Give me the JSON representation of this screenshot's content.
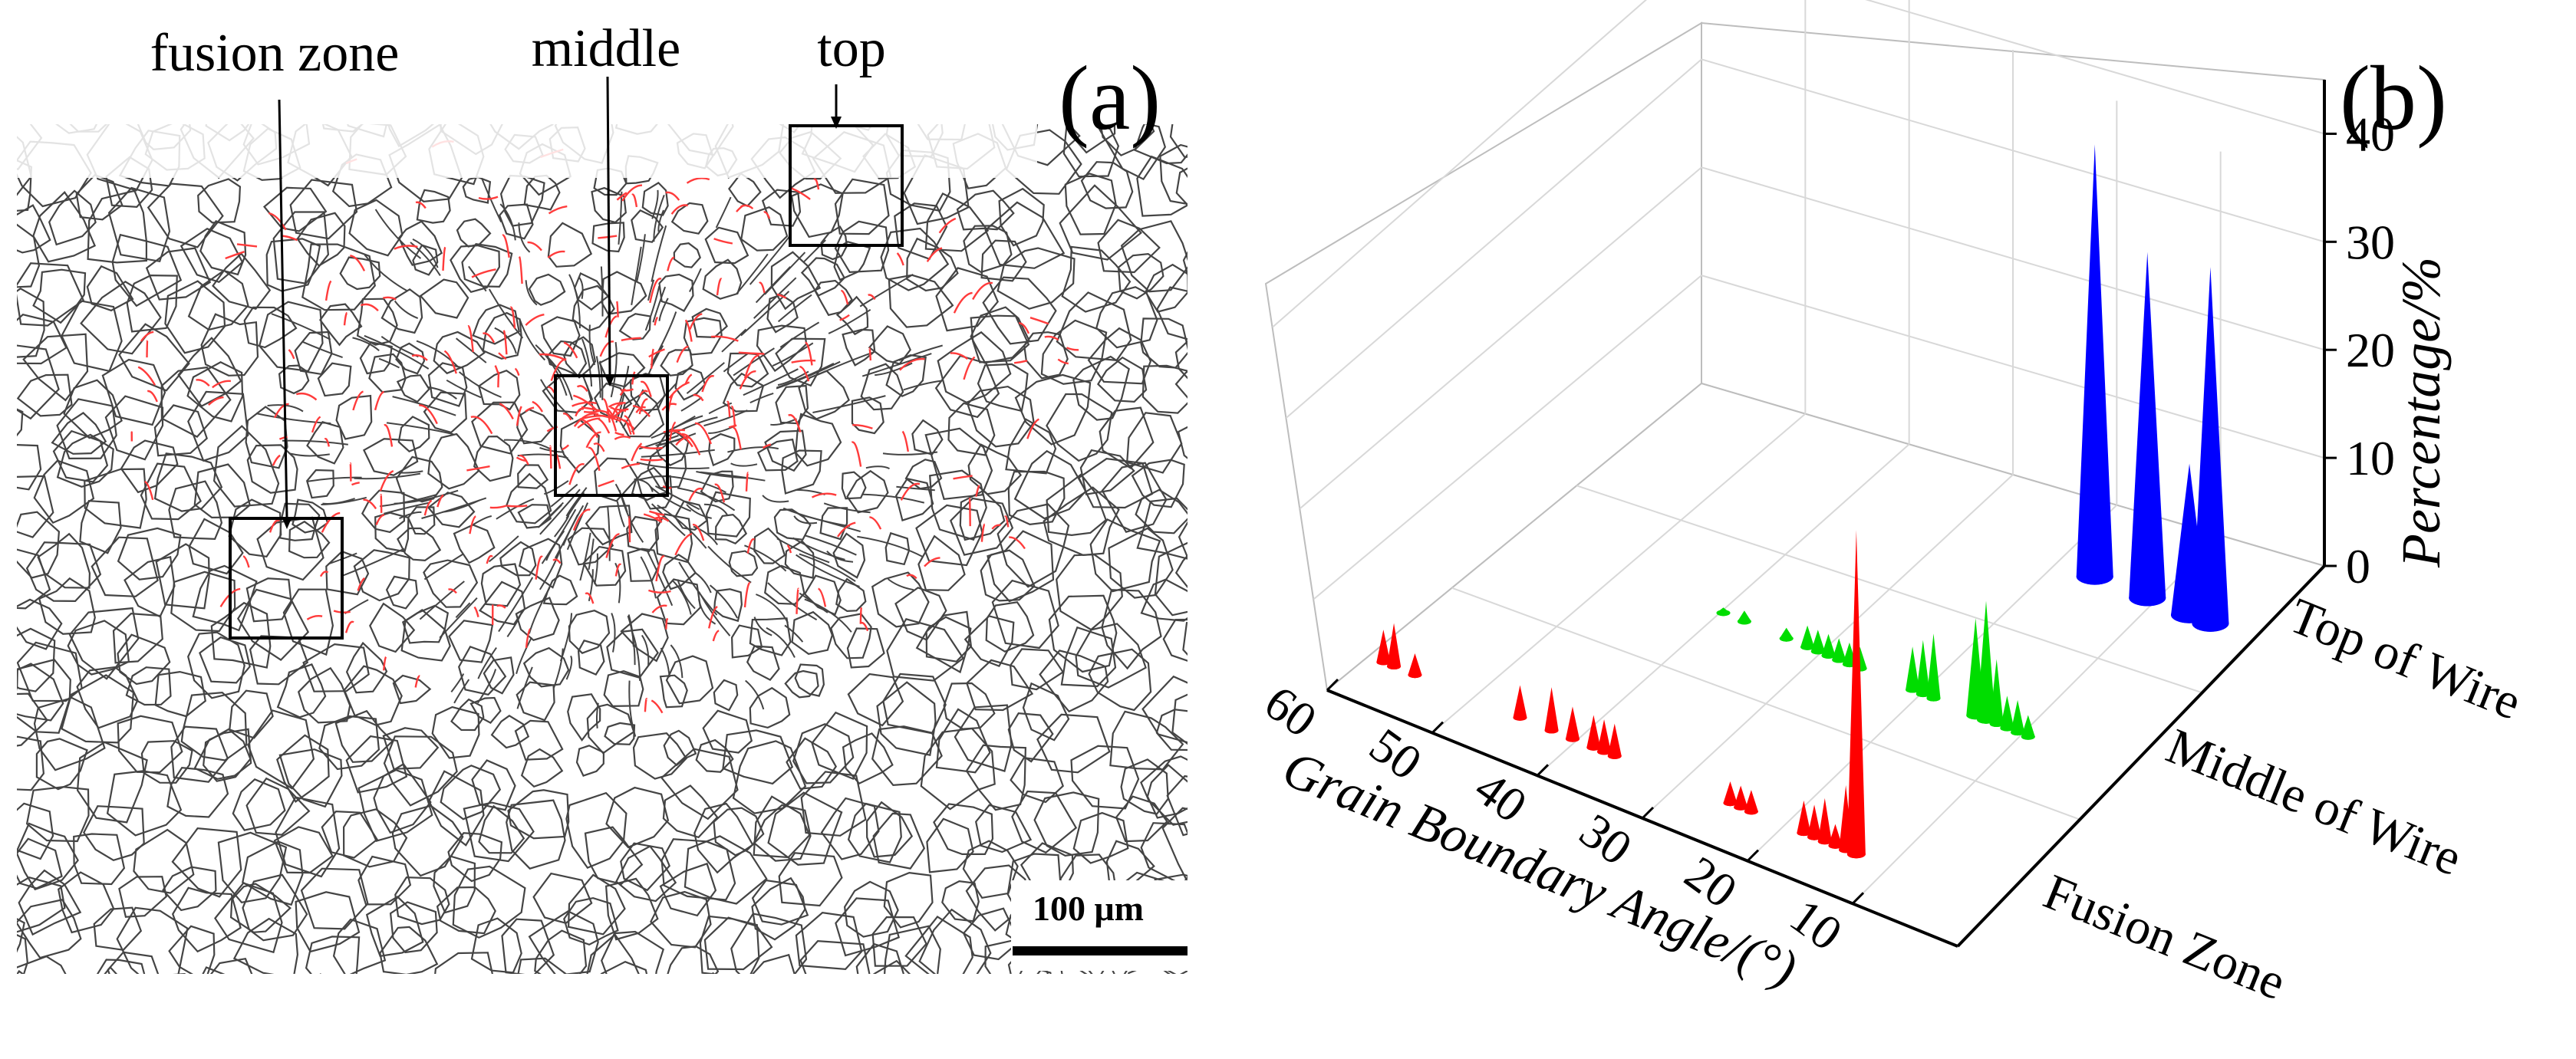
{
  "panel_a": {
    "label": "(a)",
    "annotations": {
      "fusion": "fusion zone",
      "middle": "middle",
      "top": "top"
    },
    "scale_bar": "100 μm"
  },
  "panel_b": {
    "label": "(b)"
  },
  "colors": {
    "fusion": "#ff0000",
    "middle": "#00dd00",
    "top": "#0000ff",
    "grain": "#444444",
    "lowangle": "#ff3b3b"
  },
  "chart_data": {
    "type": "3d-bar-cones",
    "title": "",
    "xlabel": "Grain Boundary Angle/(°)",
    "ylabel": "",
    "zlabel": "Percentage/%",
    "xlim": [
      0,
      60
    ],
    "zlim": [
      0,
      45
    ],
    "x_ticks": [
      "60",
      "50",
      "40",
      "30",
      "20",
      "10"
    ],
    "z_ticks": [
      "0",
      "10",
      "20",
      "30",
      "40"
    ],
    "categories": [
      "Fusion Zone",
      "Middle of Wire",
      "Top of Wire"
    ],
    "series": [
      {
        "name": "Fusion Zone",
        "color": "#ff0000",
        "points": [
          {
            "x": 58,
            "v": 3
          },
          {
            "x": 57,
            "v": 4
          },
          {
            "x": 55,
            "v": 2
          },
          {
            "x": 45,
            "v": 3
          },
          {
            "x": 42,
            "v": 4
          },
          {
            "x": 40,
            "v": 3
          },
          {
            "x": 38,
            "v": 3
          },
          {
            "x": 37,
            "v": 3
          },
          {
            "x": 36,
            "v": 3
          },
          {
            "x": 25,
            "v": 2
          },
          {
            "x": 24,
            "v": 2
          },
          {
            "x": 23,
            "v": 2
          },
          {
            "x": 18,
            "v": 3
          },
          {
            "x": 17,
            "v": 3
          },
          {
            "x": 16,
            "v": 4
          },
          {
            "x": 15,
            "v": 2
          },
          {
            "x": 14,
            "v": 6
          },
          {
            "x": 13,
            "v": 30
          }
        ]
      },
      {
        "name": "Middle of Wire",
        "color": "#00dd00",
        "points": [
          {
            "x": 38,
            "v": 0.5
          },
          {
            "x": 36,
            "v": 1
          },
          {
            "x": 32,
            "v": 1
          },
          {
            "x": 30,
            "v": 2
          },
          {
            "x": 29,
            "v": 2
          },
          {
            "x": 28,
            "v": 2
          },
          {
            "x": 27,
            "v": 2
          },
          {
            "x": 26,
            "v": 2
          },
          {
            "x": 25,
            "v": 2
          },
          {
            "x": 20,
            "v": 4
          },
          {
            "x": 19,
            "v": 5
          },
          {
            "x": 18,
            "v": 6
          },
          {
            "x": 14,
            "v": 9
          },
          {
            "x": 13,
            "v": 11
          },
          {
            "x": 12,
            "v": 6
          },
          {
            "x": 11,
            "v": 3
          },
          {
            "x": 10,
            "v": 3
          },
          {
            "x": 9,
            "v": 2
          }
        ]
      },
      {
        "name": "Top of Wire",
        "color": "#0000ff",
        "points": [
          {
            "x": 15,
            "v": 40
          },
          {
            "x": 10,
            "v": 32
          },
          {
            "x": 6,
            "v": 14
          },
          {
            "x": 4,
            "v": 33
          }
        ]
      }
    ]
  }
}
